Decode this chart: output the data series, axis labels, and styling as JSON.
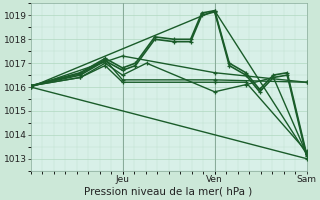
{
  "bg_color": "#cce8d8",
  "plot_bg_color": "#d8f0e8",
  "grid_color": "#b0d8c0",
  "line_color": "#1a5c2a",
  "ylabel_text": "Pression niveau de la mer( hPa )",
  "xlabel_day_labels": [
    "Jeu",
    "Ven",
    "Sam"
  ],
  "xlabel_day_positions": [
    0.333,
    0.667,
    1.0
  ],
  "ylim": [
    1012.5,
    1019.5
  ],
  "yticks": [
    1013,
    1014,
    1015,
    1016,
    1017,
    1018,
    1019
  ],
  "lines": [
    {
      "x": [
        0.0,
        0.18,
        0.27,
        0.333,
        0.38,
        0.45,
        0.52,
        0.58,
        0.62,
        0.667,
        0.72,
        0.78,
        0.83,
        0.88,
        0.93,
        1.0
      ],
      "y": [
        1016.05,
        1016.6,
        1017.2,
        1016.8,
        1017.0,
        1018.1,
        1018.0,
        1018.0,
        1019.1,
        1019.2,
        1017.0,
        1016.6,
        1015.9,
        1016.5,
        1016.6,
        1013.2
      ],
      "lw": 1.2
    },
    {
      "x": [
        0.0,
        0.18,
        0.27,
        0.333,
        0.38,
        0.45,
        0.52,
        0.58,
        0.62,
        0.667,
        0.72,
        0.78,
        0.83,
        0.88,
        0.93,
        1.0
      ],
      "y": [
        1016.05,
        1016.5,
        1017.1,
        1016.7,
        1016.9,
        1018.0,
        1017.9,
        1017.9,
        1019.0,
        1019.15,
        1016.9,
        1016.5,
        1015.8,
        1016.4,
        1016.5,
        1013.1
      ],
      "lw": 1.2
    },
    {
      "x": [
        0.0,
        0.18,
        0.27,
        0.333,
        0.667,
        1.0
      ],
      "y": [
        1016.05,
        1016.55,
        1017.15,
        1016.3,
        1016.3,
        1016.2
      ],
      "lw": 1.0
    },
    {
      "x": [
        0.0,
        0.18,
        0.27,
        0.333,
        0.42,
        0.667,
        0.78,
        0.88,
        1.0
      ],
      "y": [
        1016.05,
        1016.4,
        1017.0,
        1016.5,
        1017.0,
        1015.8,
        1016.1,
        1016.4,
        1013.2
      ],
      "lw": 1.0
    },
    {
      "x": [
        0.0,
        0.18,
        0.27,
        0.333,
        0.667,
        0.78,
        1.0
      ],
      "y": [
        1016.05,
        1016.4,
        1016.9,
        1016.2,
        1016.2,
        1016.2,
        1013.3
      ],
      "lw": 1.0
    },
    {
      "x": [
        0.0,
        1.0
      ],
      "y": [
        1016.0,
        1013.0
      ],
      "lw": 1.0
    },
    {
      "x": [
        0.0,
        0.667,
        1.0
      ],
      "y": [
        1016.0,
        1019.2,
        1013.2
      ],
      "lw": 1.0
    },
    {
      "x": [
        0.0,
        0.333,
        0.667,
        1.0
      ],
      "y": [
        1016.0,
        1017.3,
        1016.6,
        1016.2
      ],
      "lw": 1.0
    }
  ],
  "tick_fontsize": 6.5,
  "label_fontsize": 7.5
}
